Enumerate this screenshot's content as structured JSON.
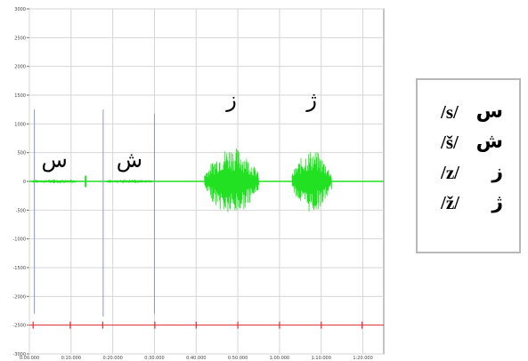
{
  "chart_data": {
    "type": "line",
    "title": "",
    "xlabel": "",
    "ylabel": "",
    "y_ticks": [
      "3000",
      "2500",
      "2000",
      "1500",
      "1000",
      "500",
      "0",
      "-500",
      "-1000",
      "-1500",
      "-2000",
      "-2500",
      "-3000"
    ],
    "x_ticks": [
      "0:00.000",
      "0:10.000",
      "0:20.000",
      "0:30.000",
      "0:40.000",
      "0:50.000",
      "1:00.000",
      "1:10.000",
      "1:20.000"
    ],
    "ylim": [
      -3000,
      3000
    ],
    "grid": true,
    "waveform_color": "#22e022",
    "marker_color": "#e03030",
    "click_line_color": "#8899cc",
    "segments": [
      {
        "letter": "س",
        "start": 0.5,
        "end": 11.5,
        "amplitude": 30
      },
      {
        "letter": "ش",
        "start": 18.5,
        "end": 29.5,
        "amplitude": 30
      },
      {
        "letter": "ز",
        "start": 42.0,
        "end": 55.0,
        "amplitude": 600
      },
      {
        "letter": "ژ",
        "start": 63.0,
        "end": 72.5,
        "amplitude": 550
      }
    ],
    "click_lines": [
      {
        "x": 1.2,
        "top": 1250,
        "bottom": -2300
      },
      {
        "x": 17.7,
        "top": 1250,
        "bottom": -2350
      },
      {
        "x": 30.0,
        "top": 1180,
        "bottom": -2300
      }
    ],
    "burst": {
      "x": 13.5,
      "amplitude": 100
    },
    "markers": [
      0.9,
      9.8,
      17.6,
      30.1,
      40.0,
      50.0,
      60.0,
      70.0,
      79.8
    ]
  },
  "legend": {
    "rows": [
      {
        "letter": "س",
        "phoneme": "/s/"
      },
      {
        "letter": "ش",
        "phoneme": "/š/"
      },
      {
        "letter": "ز",
        "phoneme": "/z/"
      },
      {
        "letter": "ژ",
        "phoneme": "/ž/"
      }
    ]
  }
}
